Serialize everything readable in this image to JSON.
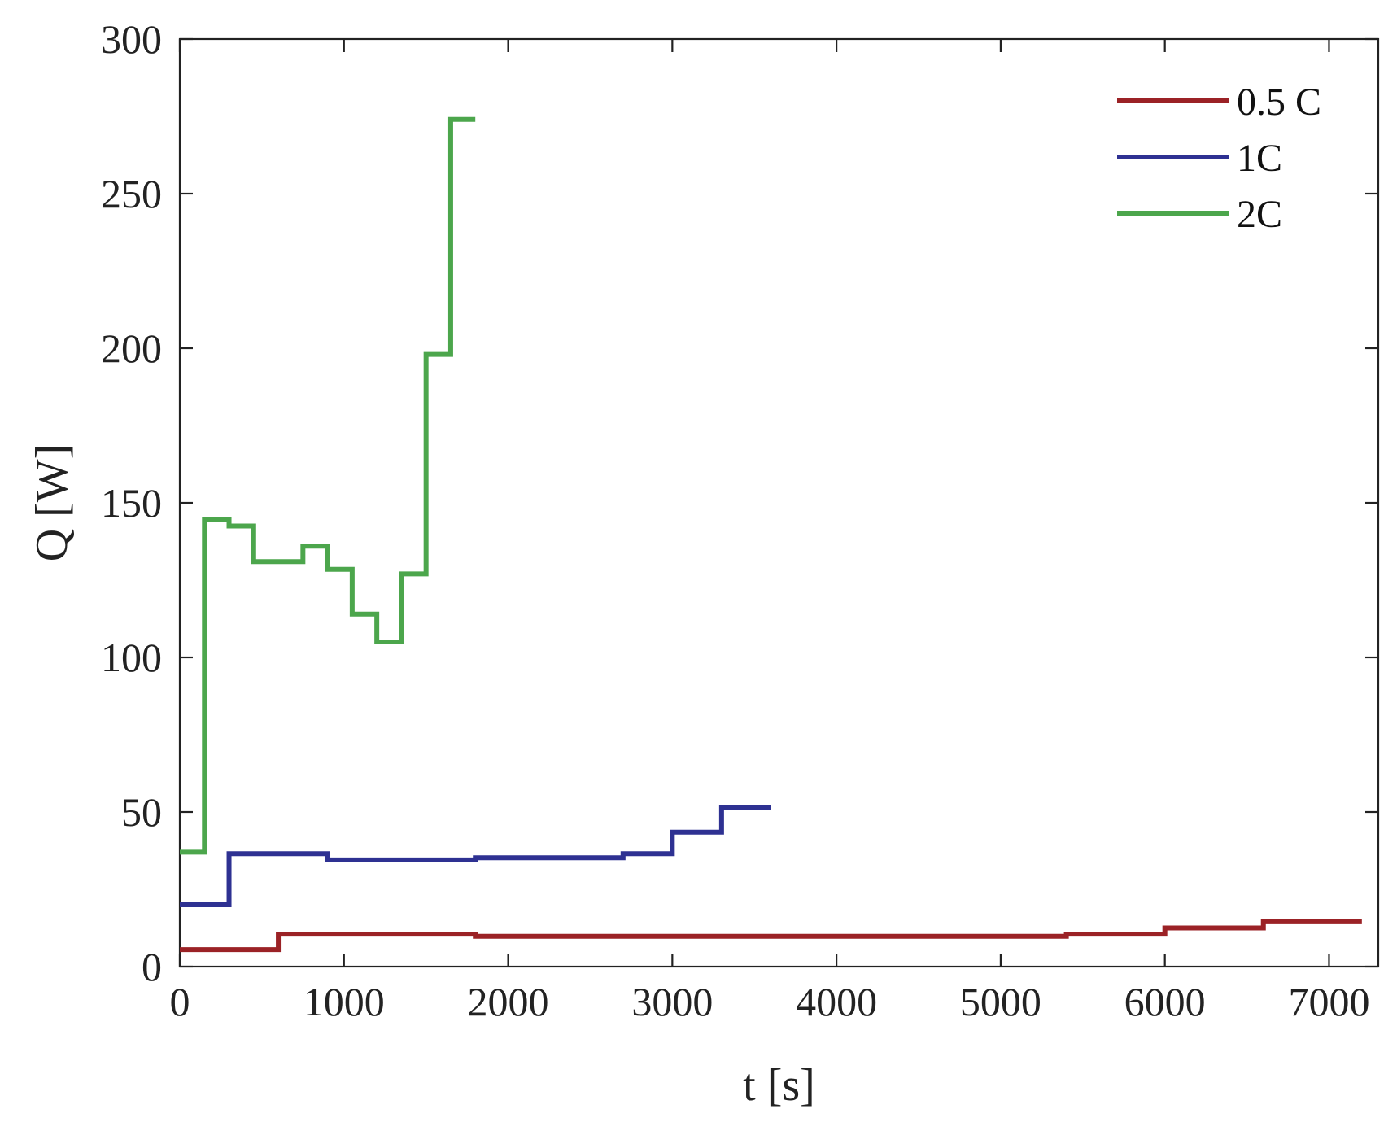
{
  "chart_data": {
    "type": "line",
    "title": "",
    "xlabel": "t [s]",
    "ylabel": "Q [W]",
    "xlim": [
      0,
      7300
    ],
    "ylim": [
      0,
      300
    ],
    "xticks": [
      0,
      1000,
      2000,
      3000,
      4000,
      5000,
      6000,
      7000
    ],
    "yticks": [
      0,
      50,
      100,
      150,
      200,
      250,
      300
    ],
    "grid": false,
    "legend_position": "top-right",
    "series": [
      {
        "name": "0.5 C",
        "color": "#9B2226",
        "x": [
          0,
          600,
          600,
          1800,
          1800,
          5400,
          5400,
          6000,
          6000,
          6600,
          6600,
          7200
        ],
        "y": [
          5.5,
          5.5,
          10.5,
          10.5,
          9.8,
          9.8,
          10.5,
          10.5,
          12.5,
          12.5,
          14.5,
          14.5
        ]
      },
      {
        "name": "1C",
        "color": "#2E3192",
        "x": [
          0,
          300,
          300,
          900,
          900,
          1800,
          1800,
          2700,
          2700,
          3000,
          3000,
          3300,
          3300,
          3600
        ],
        "y": [
          20,
          20,
          36.5,
          36.5,
          34.5,
          34.5,
          35.2,
          35.2,
          36.5,
          36.5,
          43.5,
          43.5,
          51.5,
          51.5
        ]
      },
      {
        "name": "2C",
        "color": "#4CA64C",
        "x": [
          0,
          150,
          150,
          300,
          300,
          450,
          450,
          750,
          750,
          900,
          900,
          1050,
          1050,
          1200,
          1200,
          1350,
          1350,
          1500,
          1500,
          1650,
          1650,
          1800
        ],
        "y": [
          37,
          37,
          144.5,
          144.5,
          142.5,
          142.5,
          131,
          131,
          136,
          136,
          128.5,
          128.5,
          114,
          114,
          105,
          105,
          127,
          127,
          198,
          198,
          274,
          274
        ]
      }
    ]
  }
}
